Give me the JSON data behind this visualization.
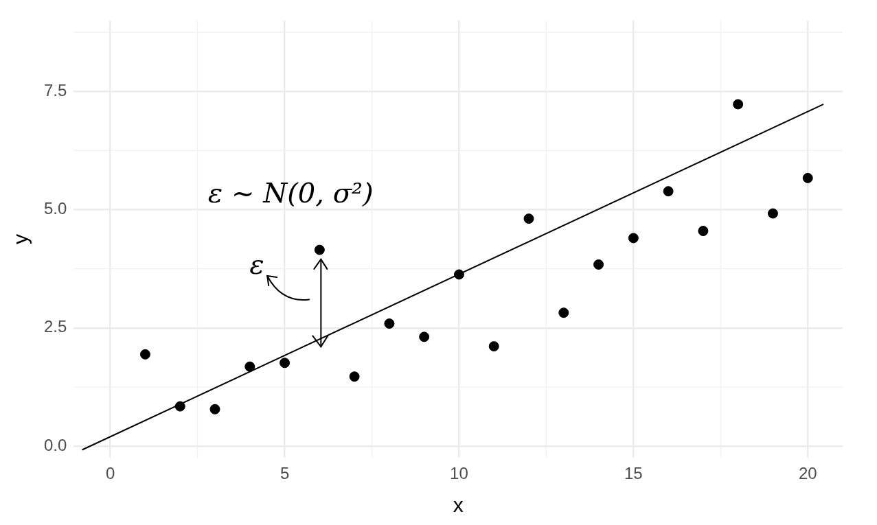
{
  "chart_data": {
    "type": "scatter",
    "xlabel": "x",
    "ylabel": "y",
    "xlim": [
      -1.05,
      21.0
    ],
    "ylim": [
      -0.25,
      9.0
    ],
    "xticks": [
      0,
      5,
      10,
      15,
      20
    ],
    "yticks": [
      {
        "value": 0,
        "label": "0.0"
      },
      2.5,
      {
        "value": 5,
        "label": "5.0"
      },
      7.5
    ],
    "grid": true,
    "legend": false,
    "annotations": [
      "ε ~ N(0, σ²)",
      "ε"
    ],
    "series": [
      {
        "marker": "circle",
        "color": "#000000",
        "x": [
          1,
          2,
          3,
          4,
          5,
          6,
          7,
          8,
          9,
          10,
          11,
          12,
          13,
          14,
          15,
          16,
          17,
          18,
          19,
          20
        ],
        "values": [
          1.94,
          0.84,
          0.78,
          1.68,
          1.76,
          4.15,
          1.47,
          2.59,
          2.31,
          3.63,
          2.11,
          4.81,
          2.82,
          3.84,
          4.4,
          5.39,
          4.55,
          7.23,
          4.92,
          5.67
        ]
      },
      {
        "type": "line",
        "marker": "none",
        "color": "#000000",
        "x": [
          -0.81,
          20.45
        ],
        "values": [
          -0.08,
          7.23
        ]
      }
    ]
  }
}
